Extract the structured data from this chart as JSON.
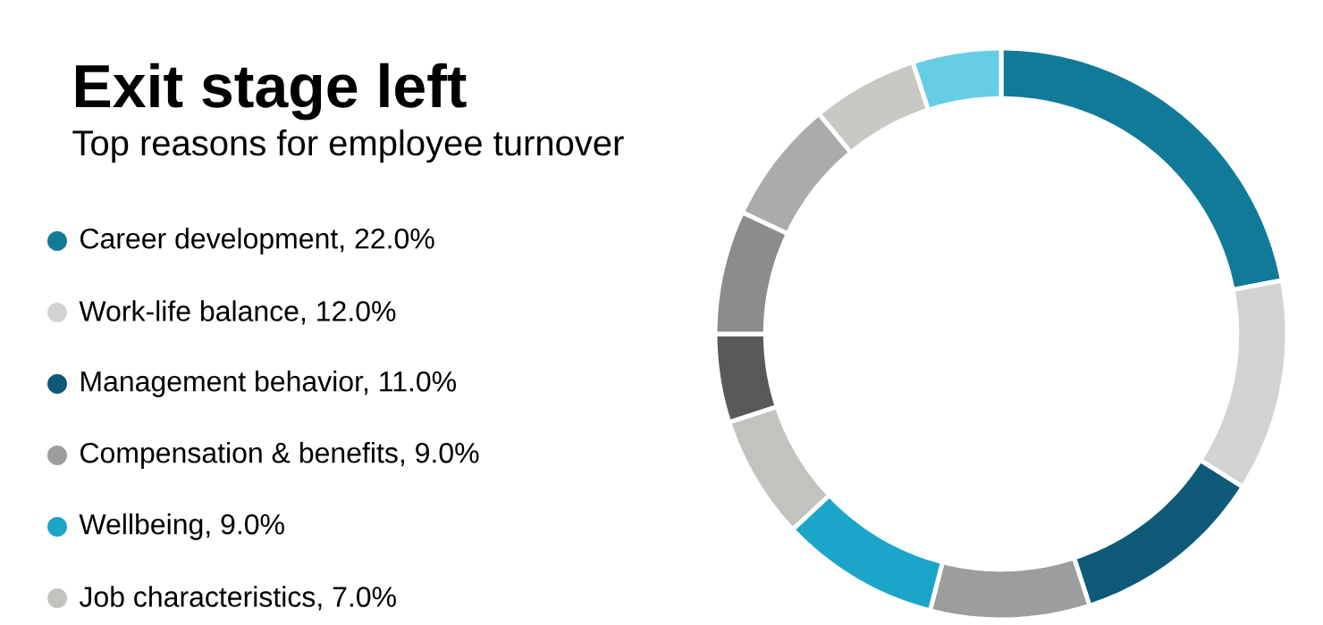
{
  "chart_data": {
    "type": "donut",
    "title": "Exit stage left",
    "subtitle": "Top reasons for employee turnover",
    "categories": [
      "Career development, 22.0%",
      "Work-life balance, 12.0%",
      "Management behavior, 11.0%",
      "Compensation & benefits, 9.0%",
      "Wellbeing, 9.0%",
      "Job characteristics, 7.0%",
      null,
      null,
      null,
      null,
      null
    ],
    "values": [
      22,
      12,
      11,
      9,
      9,
      7,
      5,
      7,
      7,
      6,
      5
    ],
    "colors": [
      "#127a99",
      "#d4d3d4",
      "#0e5a78",
      "#9d9d9d",
      "#1ba6c9",
      "#c2c2be",
      "#595959",
      "#8c8c8c",
      "#ababab",
      "#c8c8c4",
      "#66cde4"
    ],
    "legend": "left"
  }
}
